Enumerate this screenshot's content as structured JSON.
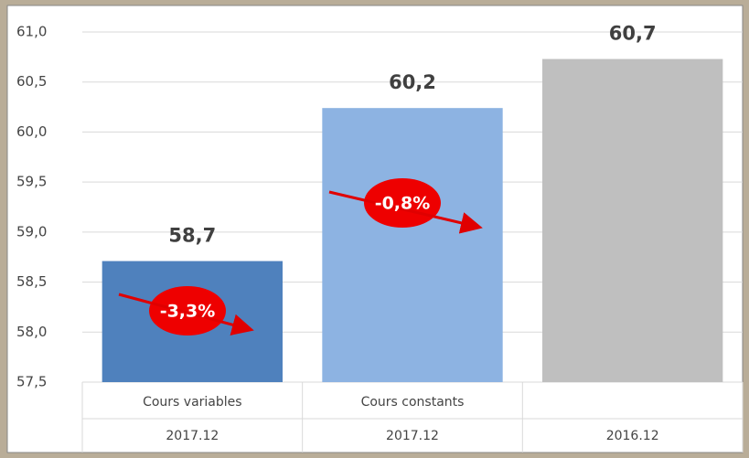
{
  "chart_data": {
    "type": "bar",
    "categories": [
      "Cours variables",
      "Cours constants",
      null
    ],
    "subcategories": [
      "2017.12",
      "2017.12",
      "2016.12"
    ],
    "values": [
      58.71,
      60.24,
      60.73
    ],
    "value_labels": [
      "58,7",
      "60,2",
      "60,7"
    ],
    "colors": [
      "#4f81bd",
      "#8db3e2",
      "#bfbfbf"
    ],
    "ylim": [
      57.5,
      61.0
    ],
    "yticks": [
      {
        "value": 57.5,
        "label": "57,5"
      },
      {
        "value": 58.0,
        "label": "58,0"
      },
      {
        "value": 58.5,
        "label": "58,5"
      },
      {
        "value": 59.0,
        "label": "59,0"
      },
      {
        "value": 59.5,
        "label": "59,5"
      },
      {
        "value": 60.0,
        "label": "60,0"
      },
      {
        "value": 60.5,
        "label": "60,5"
      },
      {
        "value": 61.0,
        "label": "61,0"
      }
    ],
    "grid": true,
    "annotations": [
      {
        "text": "-3,3%"
      },
      {
        "text": "-0,8%"
      }
    ]
  }
}
